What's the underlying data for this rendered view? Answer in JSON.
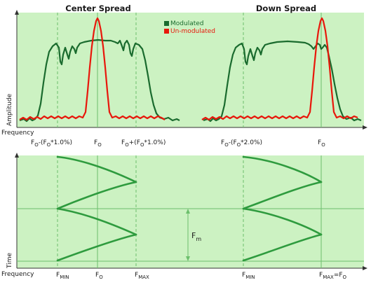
{
  "titles": {
    "center": "Center Spread",
    "down": "Down Spread"
  },
  "legend": {
    "modulated": "Modulated",
    "unmodulated": "Un-modulated"
  },
  "axes": {
    "amplitude": "Amplitude",
    "frequency": "Frequency",
    "time": "Time"
  },
  "freq_labels": {
    "fo_minus_a": "F",
    "fo_minus_b": "O",
    "fo_minus_c": "-(F",
    "fo_minus_d": "O",
    "fo_minus_e": "*1.0%)",
    "fo_a": "F",
    "fo_b": "O",
    "fo_plus_a": "F",
    "fo_plus_b": "O",
    "fo_plus_c": "+(F",
    "fo_plus_d": "O",
    "fo_plus_e": "*1.0%)",
    "down_minus_a": "F",
    "down_minus_b": "O",
    "down_minus_c": "-(F",
    "down_minus_d": "O",
    "down_minus_e": "*2.0%)",
    "down_fo_a": "F",
    "down_fo_b": "O"
  },
  "time_labels": {
    "fmin_a": "F",
    "fmin_b": "MIN",
    "fo_a": "F",
    "fo_b": "O",
    "fmax_a": "F",
    "fmax_b": "MAX",
    "d_fmin_a": "F",
    "d_fmin_b": "MIN",
    "d_fmax_a": "F",
    "d_fmax_b": "MAX",
    "d_fmax_c": "=F",
    "d_fmax_d": "O",
    "fm_a": "F",
    "fm_b": "m"
  },
  "colors": {
    "panel_bg": "#ccf2c2",
    "modulated": "#1a6b2e",
    "unmodulated": "#e8170b",
    "guide": "#6cbf6c",
    "sweep": "#2e9b3e"
  }
}
